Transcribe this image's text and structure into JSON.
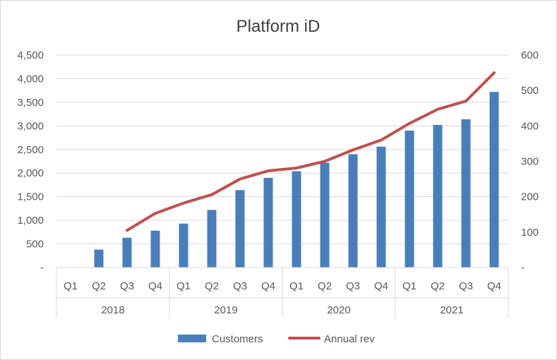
{
  "chart_data": {
    "type": "bar",
    "title": "Platform iD",
    "categories": [
      "Q1",
      "Q2",
      "Q3",
      "Q4",
      "Q1",
      "Q2",
      "Q3",
      "Q4",
      "Q1",
      "Q2",
      "Q3",
      "Q4",
      "Q1",
      "Q2",
      "Q3",
      "Q4"
    ],
    "groups": [
      {
        "label": "2018",
        "count": 4
      },
      {
        "label": "2019",
        "count": 4
      },
      {
        "label": "2020",
        "count": 4
      },
      {
        "label": "2021",
        "count": 4
      }
    ],
    "series": [
      {
        "name": "Customers",
        "type": "bar",
        "axis": "left",
        "values": [
          0,
          380,
          630,
          780,
          930,
          1220,
          1640,
          1900,
          2040,
          2220,
          2400,
          2560,
          2900,
          3020,
          3140,
          3720
        ]
      },
      {
        "name": "Annual rev",
        "type": "line",
        "axis": "right",
        "values": [
          null,
          null,
          105,
          153,
          182,
          206,
          250,
          273,
          281,
          300,
          332,
          360,
          407,
          447,
          470,
          550
        ]
      }
    ],
    "ylim_left": [
      0,
      4500
    ],
    "yticks_left": [
      "-",
      "500",
      "1,000",
      "1,500",
      "2,000",
      "2,500",
      "3,000",
      "3,500",
      "4,000",
      "4,500"
    ],
    "ylim_right": [
      0,
      600
    ],
    "yticks_right": [
      "-",
      "100",
      "200",
      "300",
      "400",
      "500",
      "600"
    ],
    "grid": true,
    "legend_position": "bottom",
    "colors": {
      "bar": "#4a7ebb",
      "line": "#c0504d",
      "grid": "#d9d9d9",
      "axis_text": "#595959"
    }
  }
}
